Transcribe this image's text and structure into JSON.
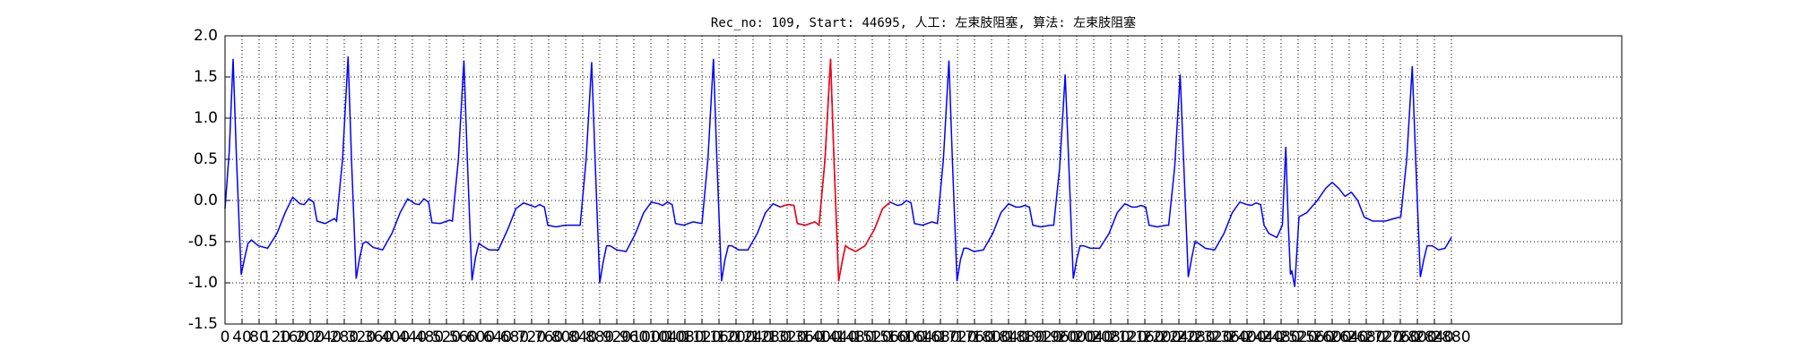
{
  "chart_data": {
    "type": "line",
    "title": "Rec_no: 109, Start: 44695, 人工: 左束肢阻塞, 算法: 左束肢阻塞",
    "xlim": [
      0,
      3280
    ],
    "xticks": [
      0,
      40,
      80,
      120,
      160,
      200,
      240,
      280,
      320,
      360,
      400,
      440,
      480,
      520,
      560,
      600,
      640,
      680,
      720,
      760,
      800,
      840,
      880,
      920,
      960,
      1000,
      1040,
      1080,
      1120,
      1160,
      1200,
      1240,
      1280,
      1320,
      1360,
      1400,
      1440,
      1480,
      1520,
      1560,
      1600,
      1640,
      1680,
      1720,
      1760,
      1800,
      1840,
      1880,
      1920,
      1960,
      2000,
      2040,
      2080,
      2120,
      2160,
      2200,
      2240,
      2280,
      2320,
      2360,
      2400,
      2440,
      2480,
      2520,
      2560,
      2600,
      2640,
      2680,
      2720,
      2760,
      2800,
      2840,
      2880
    ],
    "ylim": [
      -1.5,
      2.0
    ],
    "yticks": [
      {
        "value": 2.0,
        "label": "2.0"
      },
      1.5,
      {
        "value": 1.0,
        "label": "1.0"
      },
      0.5,
      {
        "value": 0.0,
        "label": "0.0"
      },
      -0.5,
      {
        "value": -1.0,
        "label": "-1.0"
      },
      -1.5
    ],
    "grid": true,
    "series": [
      {
        "color": "#0000ff",
        "x": [
          0,
          10,
          19,
          27,
          38,
          46,
          54,
          62,
          78,
          100,
          122,
          141,
          159,
          176,
          186,
          197,
          208,
          216,
          235,
          257,
          262,
          276,
          289,
          297,
          308,
          316,
          324,
          332,
          348,
          370,
          392,
          411,
          429,
          446,
          456,
          467,
          478,
          486,
          505,
          527,
          534,
          548,
          561,
          569,
          580,
          588,
          596,
          604,
          620,
          642,
          664,
          683,
          701,
          718,
          728,
          739,
          750,
          758,
          777,
          799,
          820,
          834,
          848,
          861,
          869,
          880,
          888,
          896,
          904,
          920,
          942,
          964,
          983,
          1001,
          1018,
          1028,
          1039,
          1050,
          1058,
          1077,
          1099,
          1120,
          1134,
          1147,
          1155,
          1166,
          1174,
          1182,
          1190,
          1206,
          1228,
          1250,
          1269,
          1287,
          1304,
          1314,
          1325,
          1336,
          1344,
          1363,
          1385,
          1395,
          1409,
          1422,
          1430,
          1441,
          1449,
          1457,
          1465,
          1481,
          1503,
          1525,
          1544,
          1562,
          1579,
          1589,
          1600,
          1611,
          1619,
          1638,
          1660,
          1673,
          1687,
          1700,
          1708,
          1719,
          1727,
          1735,
          1743,
          1759,
          1781,
          1803,
          1822,
          1840,
          1857,
          1867,
          1878,
          1889,
          1897,
          1916,
          1938,
          1946,
          1960,
          1973,
          1981,
          1992,
          2000,
          2008,
          2016,
          2032,
          2054,
          2076,
          2095,
          2113,
          2130,
          2140,
          2151,
          2162,
          2170,
          2189,
          2211,
          2216,
          2230,
          2243,
          2251,
          2262,
          2270,
          2278,
          2286,
          2302,
          2324,
          2346,
          2365,
          2383,
          2400,
          2410,
          2421,
          2432,
          2440,
          2451,
          2470,
          2483,
          2491,
          2497,
          2502,
          2505,
          2512,
          2522,
          2540,
          2565,
          2585,
          2600,
          2615,
          2630,
          2645,
          2660,
          2675,
          2695,
          2725,
          2745,
          2761,
          2775,
          2788,
          2796,
          2807,
          2815,
          2823,
          2835,
          2850,
          2865,
          2880
        ],
        "values": [
          -0.1,
          0.6,
          1.72,
          0.5,
          -0.9,
          -0.7,
          -0.52,
          -0.48,
          -0.55,
          -0.58,
          -0.4,
          -0.15,
          0.04,
          -0.04,
          -0.05,
          0.02,
          -0.02,
          -0.25,
          -0.28,
          -0.22,
          -0.25,
          0.5,
          1.75,
          0.5,
          -0.95,
          -0.7,
          -0.52,
          -0.5,
          -0.57,
          -0.6,
          -0.4,
          -0.15,
          0.02,
          -0.04,
          -0.05,
          0.02,
          -0.02,
          -0.27,
          -0.28,
          -0.24,
          -0.25,
          0.5,
          1.7,
          0.5,
          -0.97,
          -0.7,
          -0.52,
          -0.55,
          -0.6,
          -0.6,
          -0.35,
          -0.1,
          -0.03,
          -0.06,
          -0.08,
          -0.05,
          -0.08,
          -0.3,
          -0.32,
          -0.3,
          -0.3,
          -0.3,
          0.5,
          1.68,
          0.5,
          -1.0,
          -0.75,
          -0.55,
          -0.55,
          -0.6,
          -0.62,
          -0.4,
          -0.15,
          -0.02,
          -0.04,
          -0.06,
          -0.02,
          -0.05,
          -0.28,
          -0.3,
          -0.26,
          -0.28,
          0.5,
          1.72,
          0.5,
          -0.98,
          -0.72,
          -0.55,
          -0.55,
          -0.6,
          -0.6,
          -0.4,
          -0.15,
          -0.04,
          -0.08,
          -0.06,
          -0.05,
          -0.06,
          -0.28,
          -0.3,
          -0.26,
          -0.3,
          0.5,
          1.72,
          0.5,
          -0.98,
          -0.75,
          -0.55,
          -0.58,
          -0.62,
          -0.55,
          -0.35,
          -0.1,
          -0.02,
          -0.06,
          -0.05,
          0.0,
          -0.03,
          -0.28,
          -0.3,
          -0.26,
          -0.28,
          0.5,
          1.7,
          0.5,
          -0.98,
          -0.72,
          -0.58,
          -0.58,
          -0.62,
          -0.6,
          -0.4,
          -0.15,
          -0.04,
          -0.08,
          -0.08,
          -0.06,
          -0.08,
          -0.3,
          -0.32,
          -0.3,
          -0.3,
          0.4,
          1.53,
          0.5,
          -0.95,
          -0.72,
          -0.55,
          -0.55,
          -0.58,
          -0.58,
          -0.4,
          -0.15,
          -0.04,
          -0.08,
          -0.08,
          -0.06,
          -0.08,
          -0.3,
          -0.32,
          -0.3,
          -0.3,
          0.4,
          1.53,
          0.5,
          -0.93,
          -0.7,
          -0.5,
          -0.52,
          -0.58,
          -0.6,
          -0.4,
          -0.15,
          -0.02,
          -0.05,
          -0.06,
          -0.03,
          -0.05,
          -0.3,
          -0.4,
          -0.45,
          -0.3,
          0.65,
          -0.3,
          -0.9,
          -0.85,
          -1.05,
          -0.2,
          -0.15,
          0.0,
          0.15,
          0.22,
          0.15,
          0.05,
          0.1,
          0.0,
          -0.2,
          -0.25,
          -0.25,
          -0.22,
          -0.2,
          0.5,
          1.63,
          0.5,
          -0.93,
          -0.72,
          -0.55,
          -0.55,
          -0.6,
          -0.58,
          -0.45
        ]
      },
      {
        "color": "#ff0000",
        "x": [
          1304,
          1314,
          1325,
          1336,
          1344,
          1363,
          1385,
          1395,
          1409,
          1422,
          1430,
          1441,
          1449,
          1457,
          1465,
          1481,
          1503,
          1525,
          1544,
          1562
        ],
        "values": [
          -0.08,
          -0.06,
          -0.05,
          -0.06,
          -0.28,
          -0.3,
          -0.26,
          -0.3,
          0.5,
          1.72,
          0.5,
          -0.98,
          -0.75,
          -0.55,
          -0.58,
          -0.62,
          -0.55,
          -0.35,
          -0.1,
          -0.02
        ]
      }
    ]
  }
}
